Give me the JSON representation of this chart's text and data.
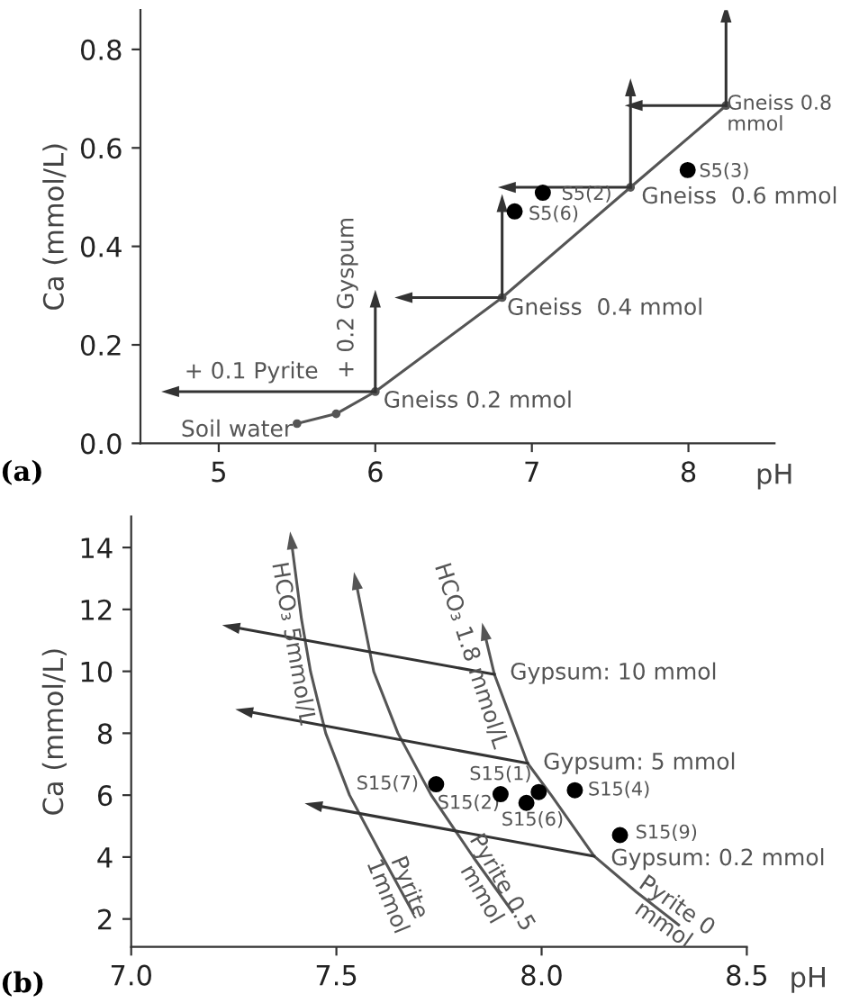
{
  "chart_data": [
    {
      "type": "line",
      "xlabel": "pH",
      "ylabel": "Ca (mmol/L)",
      "xlim": [
        4.5,
        8.55
      ],
      "ylim": [
        0,
        0.88
      ],
      "xticks": [
        5,
        6,
        7,
        8
      ],
      "yticks": [
        {
          "value": 0,
          "label": "0.0"
        },
        0.2,
        0.4,
        0.6,
        0.8
      ],
      "annotations": [
        "Soil water",
        "Gneiss 0.2 mmol",
        "Gneiss  0.4 mmol",
        "Gneiss  0.6 mmol",
        "Gneiss 0.8\nmmol",
        "+ 0.1 Pyrite",
        "+ 0.2 Gyspum",
        "S5(2)",
        "S5(6)",
        "S5(3)",
        "(a)"
      ],
      "series": [
        {
          "color": "#555555",
          "marker": "circle",
          "x": [
            5.5,
            5.75,
            6.0,
            6.81,
            7.63,
            8.24
          ],
          "values": [
            0.04,
            0.06,
            0.105,
            0.296,
            0.52,
            0.686
          ]
        },
        {
          "color": "#333333",
          "x": [
            6.0,
            4.69
          ],
          "values": [
            0.105,
            0.105
          ]
        },
        {
          "color": "#333333",
          "x": [
            6.0,
            6.0
          ],
          "values": [
            0.105,
            0.294
          ]
        },
        {
          "color": "#333333",
          "x": [
            6.81,
            6.18
          ],
          "values": [
            0.296,
            0.296
          ]
        },
        {
          "color": "#333333",
          "x": [
            6.81,
            6.81
          ],
          "values": [
            0.296,
            0.488
          ]
        },
        {
          "color": "#333333",
          "x": [
            7.63,
            6.84
          ],
          "values": [
            0.52,
            0.52
          ]
        },
        {
          "color": "#333333",
          "x": [
            7.63,
            7.63
          ],
          "values": [
            0.52,
            0.723
          ]
        },
        {
          "color": "#333333",
          "x": [
            8.24,
            7.65
          ],
          "values": [
            0.686,
            0.686
          ]
        },
        {
          "color": "#333333",
          "x": [
            8.24,
            8.24
          ],
          "values": [
            0.686,
            0.873
          ]
        },
        {
          "type": "scatter",
          "color": "#000000",
          "x": [
            7.07,
            6.89,
            7.995
          ],
          "values": [
            0.509,
            0.471,
            0.555
          ]
        }
      ]
    },
    {
      "type": "line",
      "xlabel": "pH",
      "ylabel": "Ca (mmol/L)",
      "xlim": [
        7.0,
        8.5
      ],
      "ylim": [
        1.1,
        15
      ],
      "xticks": [
        {
          "value": 7,
          "label": "7.0"
        },
        7.5,
        {
          "value": 8,
          "label": "8.0"
        },
        8.5
      ],
      "yticks": [
        2,
        4,
        6,
        8,
        10,
        12,
        14
      ],
      "annotations": [
        "HCO₃ 5mmol/L",
        "HCO₃ 1.8 mmol/L",
        "Gypsum: 10 mmol",
        "Gypsum: 5 mmol",
        "Gypsum: 0.2 mmol",
        "Pyrite\n1mmol",
        "Pyrite 0.5\nmmol",
        "Pyrite 0\nmmol",
        "S15(7)",
        "S15(2)",
        "S15(6)",
        "S15(1)",
        "S15(4)",
        "S15(9)",
        "(b)"
      ],
      "series": [
        {
          "color": "#555555",
          "x": [
            7.687,
            7.613,
            7.532,
            7.474,
            7.437,
            7.415,
            7.39
          ],
          "values": [
            2.19,
            3.99,
            6.0,
            8.0,
            9.99,
            11.68,
            14.23
          ]
        },
        {
          "color": "#555555",
          "x": [
            7.929,
            7.834,
            7.731,
            7.65,
            7.591,
            7.547
          ],
          "values": [
            2.23,
            3.99,
            6.0,
            8.0,
            9.99,
            12.93
          ]
        },
        {
          "color": "#555555",
          "x": [
            8.334,
            8.231,
            8.128,
            8.025,
            7.966,
            7.885,
            7.86
          ],
          "values": [
            1.81,
            2.87,
            4.03,
            5.97,
            7.03,
            9.9,
            11.29
          ]
        },
        {
          "color": "#333333",
          "x": [
            7.885,
            7.243
          ],
          "values": [
            9.9,
            11.44
          ]
        },
        {
          "color": "#333333",
          "x": [
            7.966,
            7.275
          ],
          "values": [
            7.03,
            8.72
          ]
        },
        {
          "color": "#333333",
          "x": [
            8.128,
            7.444
          ],
          "values": [
            4.03,
            5.68
          ]
        },
        {
          "type": "scatter",
          "color": "#000000",
          "x": [
            7.743,
            7.9,
            7.963,
            7.993,
            8.081,
            8.191
          ],
          "values": [
            6.35,
            6.03,
            5.75,
            6.1,
            6.16,
            4.71
          ]
        }
      ]
    }
  ]
}
